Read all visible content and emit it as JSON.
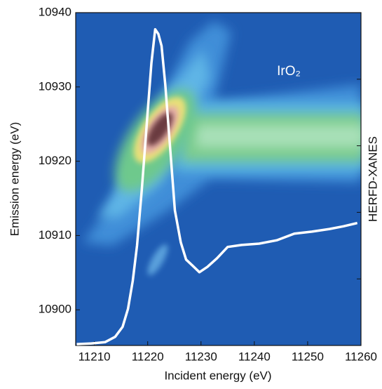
{
  "chart_data": {
    "type": "line",
    "xlabel": "Incident energy (eV)",
    "ylabel": "Emission energy (eV)",
    "y2label": "HERFD-XANES",
    "annotation": "IrO₂",
    "xlim": [
      11206.5,
      11260
    ],
    "xticks": [
      11210,
      11220,
      11230,
      11240,
      11250,
      11260
    ],
    "ylim": [
      10895.2,
      10940
    ],
    "yticks": [
      10900,
      10910,
      10920,
      10930,
      10940
    ],
    "y2lim": [
      0,
      5
    ],
    "y2ticks": [
      1,
      2,
      3,
      4
    ],
    "series": [
      {
        "name": "HERFD-XANES",
        "color": "#ffffff",
        "axis": "y2",
        "x": [
          11206.7,
          11209.3,
          11212.0,
          11213.9,
          11215.3,
          11216.3,
          11217.2,
          11218.0,
          11218.9,
          11219.9,
          11220.7,
          11221.4,
          11222.0,
          11222.6,
          11223.3,
          11224.1,
          11225.1,
          11226.2,
          11227.2,
          11228.4,
          11229.7,
          11231.2,
          11233.0,
          11235.0,
          11237.6,
          11240.9,
          11244.2,
          11247.5,
          11250.8,
          11254.1,
          11256.7,
          11259.3
        ],
        "values": [
          0.02,
          0.03,
          0.05,
          0.13,
          0.28,
          0.55,
          0.97,
          1.5,
          2.34,
          3.4,
          4.24,
          4.75,
          4.68,
          4.5,
          3.92,
          3.08,
          2.03,
          1.55,
          1.29,
          1.2,
          1.1,
          1.18,
          1.31,
          1.48,
          1.51,
          1.53,
          1.58,
          1.68,
          1.71,
          1.75,
          1.79,
          1.84
        ]
      }
    ]
  }
}
